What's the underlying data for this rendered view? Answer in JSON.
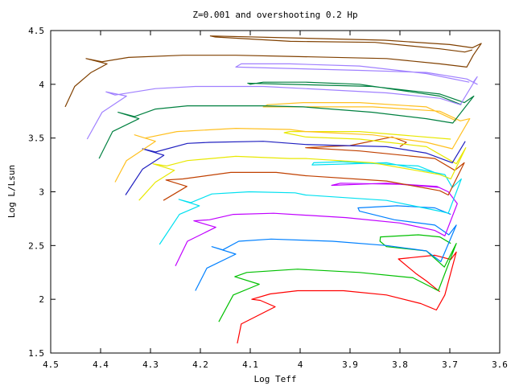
{
  "chart_data": {
    "type": "line",
    "title": "Z=0.001 and overshooting 0.2 Hp",
    "xlabel": "Log Teff",
    "ylabel": "Log L/Lsun",
    "xlim": [
      4.5,
      3.6
    ],
    "ylim": [
      1.5,
      4.5
    ],
    "x_reversed": true,
    "xticks": [
      "4.5",
      "4.4",
      "4.3",
      "4.2",
      "4.1",
      "4",
      "3.9",
      "3.8",
      "3.7",
      "3.6"
    ],
    "xtick_values": [
      4.5,
      4.4,
      4.3,
      4.2,
      4.1,
      4.0,
      3.9,
      3.8,
      3.7,
      3.6
    ],
    "yticks": [
      "1.5",
      "2",
      "2.5",
      "3",
      "3.5",
      "4",
      "4.5"
    ],
    "ytick_values": [
      1.5,
      2.0,
      2.5,
      3.0,
      3.5,
      4.0,
      4.5
    ],
    "grid": false,
    "series": [
      {
        "color": "#ff0000",
        "points": [
          [
            4.126,
            1.59
          ],
          [
            4.118,
            1.77
          ],
          [
            4.05,
            1.93
          ],
          [
            4.08,
            1.99
          ],
          [
            4.097,
            2.0
          ],
          [
            4.06,
            2.05
          ],
          [
            4.005,
            2.08
          ],
          [
            3.913,
            2.08
          ],
          [
            3.827,
            2.04
          ],
          [
            3.758,
            1.96
          ],
          [
            3.727,
            1.9
          ],
          [
            3.71,
            2.04
          ],
          [
            3.687,
            2.44
          ],
          [
            3.698,
            2.37
          ],
          [
            3.73,
            2.41
          ],
          [
            3.803,
            2.375
          ],
          [
            3.768,
            2.24
          ],
          [
            3.747,
            2.17
          ],
          [
            3.72,
            2.07
          ]
        ]
      },
      {
        "color": "#00c000",
        "points": [
          [
            4.163,
            1.79
          ],
          [
            4.134,
            2.04
          ],
          [
            4.082,
            2.14
          ],
          [
            4.131,
            2.21
          ],
          [
            4.107,
            2.25
          ],
          [
            4.005,
            2.28
          ],
          [
            3.881,
            2.25
          ],
          [
            3.774,
            2.2
          ],
          [
            3.723,
            2.08
          ],
          [
            3.687,
            2.52
          ],
          [
            3.711,
            2.3
          ],
          [
            3.747,
            2.45
          ],
          [
            3.827,
            2.49
          ],
          [
            3.84,
            2.54
          ],
          [
            3.839,
            2.58
          ],
          [
            3.763,
            2.6
          ],
          [
            3.72,
            2.58
          ],
          [
            3.698,
            2.52
          ]
        ]
      },
      {
        "color": "#0080ff",
        "points": [
          [
            4.21,
            2.08
          ],
          [
            4.187,
            2.29
          ],
          [
            4.129,
            2.42
          ],
          [
            4.177,
            2.49
          ],
          [
            4.155,
            2.46
          ],
          [
            4.123,
            2.54
          ],
          [
            4.058,
            2.56
          ],
          [
            3.935,
            2.54
          ],
          [
            3.827,
            2.5
          ],
          [
            3.747,
            2.45
          ],
          [
            3.718,
            2.35
          ],
          [
            3.687,
            2.69
          ],
          [
            3.702,
            2.6
          ],
          [
            3.73,
            2.69
          ],
          [
            3.811,
            2.74
          ],
          [
            3.881,
            2.82
          ],
          [
            3.884,
            2.85
          ],
          [
            3.806,
            2.87
          ],
          [
            3.73,
            2.85
          ],
          [
            3.698,
            2.79
          ]
        ]
      },
      {
        "color": "#c000ff",
        "points": [
          [
            4.25,
            2.31
          ],
          [
            4.226,
            2.54
          ],
          [
            4.169,
            2.67
          ],
          [
            4.213,
            2.73
          ],
          [
            4.182,
            2.74
          ],
          [
            4.134,
            2.79
          ],
          [
            4.053,
            2.8
          ],
          [
            3.908,
            2.76
          ],
          [
            3.8,
            2.71
          ],
          [
            3.73,
            2.64
          ],
          [
            3.71,
            2.59
          ],
          [
            3.685,
            2.89
          ],
          [
            3.703,
            3.0
          ],
          [
            3.726,
            3.05
          ],
          [
            3.827,
            3.08
          ],
          [
            3.937,
            3.06
          ],
          [
            3.919,
            3.08
          ],
          [
            3.8,
            3.07
          ],
          [
            3.72,
            3.04
          ]
        ]
      },
      {
        "color": "#00e0f0",
        "points": [
          [
            4.282,
            2.51
          ],
          [
            4.242,
            2.79
          ],
          [
            4.202,
            2.87
          ],
          [
            4.243,
            2.93
          ],
          [
            4.219,
            2.9
          ],
          [
            4.177,
            2.98
          ],
          [
            4.102,
            3.0
          ],
          [
            4.01,
            2.99
          ],
          [
            3.989,
            2.97
          ],
          [
            3.827,
            2.92
          ],
          [
            3.72,
            2.82
          ],
          [
            3.703,
            2.8
          ],
          [
            3.677,
            3.12
          ],
          [
            3.695,
            3.04
          ],
          [
            3.71,
            3.16
          ],
          [
            3.827,
            3.27
          ],
          [
            3.976,
            3.25
          ],
          [
            3.973,
            3.27
          ],
          [
            3.919,
            3.28
          ],
          [
            3.763,
            3.24
          ],
          [
            3.698,
            3.12
          ]
        ]
      },
      {
        "color": "#c04000",
        "points": [
          [
            4.274,
            2.92
          ],
          [
            4.227,
            3.05
          ],
          [
            4.269,
            3.11
          ],
          [
            4.235,
            3.12
          ],
          [
            4.139,
            3.18
          ],
          [
            4.048,
            3.18
          ],
          [
            3.989,
            3.15
          ],
          [
            3.827,
            3.1
          ],
          [
            3.72,
            3.01
          ],
          [
            3.703,
            2.97
          ],
          [
            3.671,
            3.27
          ],
          [
            3.69,
            3.2
          ],
          [
            3.73,
            3.31
          ],
          [
            3.881,
            3.38
          ],
          [
            3.989,
            3.41
          ],
          [
            3.9,
            3.43
          ],
          [
            3.816,
            3.51
          ],
          [
            3.787,
            3.46
          ],
          [
            3.8,
            3.42
          ]
        ]
      },
      {
        "color": "#e8e800",
        "points": [
          [
            4.323,
            2.92
          ],
          [
            4.29,
            3.09
          ],
          [
            4.252,
            3.2
          ],
          [
            4.295,
            3.26
          ],
          [
            4.268,
            3.24
          ],
          [
            4.226,
            3.29
          ],
          [
            4.129,
            3.33
          ],
          [
            4.021,
            3.31
          ],
          [
            3.989,
            3.31
          ],
          [
            3.855,
            3.27
          ],
          [
            3.72,
            3.16
          ],
          [
            3.698,
            3.12
          ],
          [
            3.668,
            3.41
          ],
          [
            3.687,
            3.26
          ],
          [
            3.747,
            3.42
          ],
          [
            3.881,
            3.49
          ],
          [
            3.989,
            3.51
          ],
          [
            4.032,
            3.55
          ],
          [
            4.021,
            3.56
          ],
          [
            3.881,
            3.56
          ],
          [
            3.698,
            3.49
          ]
        ]
      },
      {
        "color": "#2020c0",
        "points": [
          [
            4.35,
            2.97
          ],
          [
            4.316,
            3.21
          ],
          [
            4.273,
            3.34
          ],
          [
            4.316,
            3.4
          ],
          [
            4.29,
            3.37
          ],
          [
            4.226,
            3.45
          ],
          [
            4.182,
            3.46
          ],
          [
            4.074,
            3.47
          ],
          [
            3.989,
            3.44
          ],
          [
            3.827,
            3.42
          ],
          [
            3.747,
            3.36
          ],
          [
            3.695,
            3.27
          ],
          [
            3.669,
            3.47
          ]
        ]
      },
      {
        "color": "#ffc020",
        "points": [
          [
            4.371,
            3.09
          ],
          [
            4.348,
            3.29
          ],
          [
            4.29,
            3.47
          ],
          [
            4.332,
            3.53
          ],
          [
            4.311,
            3.5
          ],
          [
            4.247,
            3.56
          ],
          [
            4.129,
            3.59
          ],
          [
            4.021,
            3.58
          ],
          [
            3.989,
            3.56
          ],
          [
            3.855,
            3.53
          ],
          [
            3.747,
            3.46
          ],
          [
            3.695,
            3.4
          ],
          [
            3.66,
            3.68
          ],
          [
            3.679,
            3.66
          ],
          [
            3.72,
            3.75
          ],
          [
            3.855,
            3.79
          ],
          [
            4.074,
            3.79
          ],
          [
            4.065,
            3.81
          ],
          [
            3.994,
            3.83
          ],
          [
            3.881,
            3.83
          ],
          [
            3.747,
            3.79
          ],
          [
            3.687,
            3.66
          ]
        ]
      },
      {
        "color": "#008040",
        "points": [
          [
            4.403,
            3.31
          ],
          [
            4.376,
            3.56
          ],
          [
            4.323,
            3.68
          ],
          [
            4.365,
            3.74
          ],
          [
            4.332,
            3.7
          ],
          [
            4.29,
            3.77
          ],
          [
            4.226,
            3.8
          ],
          [
            4.074,
            3.8
          ],
          [
            3.994,
            3.79
          ],
          [
            3.855,
            3.74
          ],
          [
            3.747,
            3.68
          ],
          [
            3.694,
            3.64
          ],
          [
            3.652,
            3.89
          ],
          [
            3.671,
            3.83
          ],
          [
            3.72,
            3.91
          ],
          [
            3.855,
            3.98
          ],
          [
            4.105,
            4.01
          ],
          [
            4.1,
            4.0
          ],
          [
            4.074,
            4.02
          ],
          [
            3.989,
            4.02
          ],
          [
            3.881,
            4.0
          ],
          [
            3.72,
            3.89
          ],
          [
            3.677,
            3.81
          ]
        ]
      },
      {
        "color": "#a080ff",
        "points": [
          [
            4.427,
            3.49
          ],
          [
            4.397,
            3.74
          ],
          [
            4.348,
            3.89
          ],
          [
            4.389,
            3.93
          ],
          [
            4.371,
            3.9
          ],
          [
            4.29,
            3.96
          ],
          [
            4.21,
            3.98
          ],
          [
            4.074,
            3.98
          ],
          [
            3.989,
            3.96
          ],
          [
            3.827,
            3.92
          ],
          [
            3.72,
            3.87
          ],
          [
            3.679,
            3.81
          ],
          [
            3.645,
            4.07
          ],
          [
            3.653,
            4.02
          ],
          [
            3.645,
            4.0
          ],
          [
            3.666,
            4.05
          ],
          [
            3.747,
            4.11
          ],
          [
            3.881,
            4.13
          ],
          [
            4.129,
            4.16
          ],
          [
            4.118,
            4.19
          ],
          [
            4.021,
            4.19
          ],
          [
            3.881,
            4.17
          ],
          [
            3.747,
            4.1
          ],
          [
            3.661,
            4.02
          ]
        ]
      },
      {
        "color": "#804000",
        "points": [
          [
            4.471,
            3.79
          ],
          [
            4.452,
            3.98
          ],
          [
            4.419,
            4.11
          ],
          [
            4.387,
            4.19
          ],
          [
            4.429,
            4.24
          ],
          [
            4.397,
            4.21
          ],
          [
            4.344,
            4.25
          ],
          [
            4.235,
            4.27
          ],
          [
            4.129,
            4.27
          ],
          [
            4.021,
            4.26
          ],
          [
            3.827,
            4.24
          ],
          [
            3.72,
            4.19
          ],
          [
            3.666,
            4.16
          ],
          [
            3.653,
            4.27
          ],
          [
            3.637,
            4.38
          ],
          [
            3.655,
            4.34
          ],
          [
            3.7,
            4.37
          ],
          [
            3.83,
            4.41
          ],
          [
            4.0,
            4.43
          ],
          [
            4.18,
            4.45
          ],
          [
            4.17,
            4.44
          ],
          [
            4.02,
            4.4
          ],
          [
            3.85,
            4.39
          ],
          [
            3.72,
            4.33
          ],
          [
            3.67,
            4.3
          ],
          [
            3.655,
            4.32
          ]
        ]
      }
    ]
  }
}
